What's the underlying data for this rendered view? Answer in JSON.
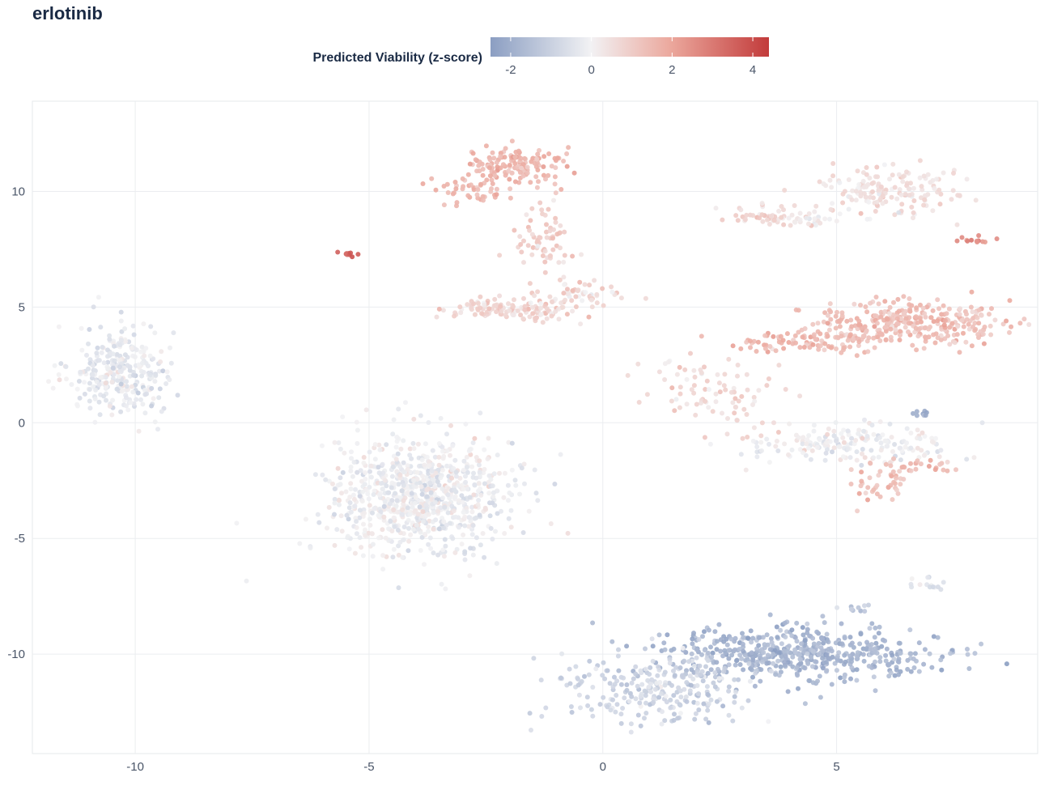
{
  "chart_data": {
    "type": "scatter",
    "title": "erlotinib",
    "xlabel": "",
    "ylabel": "",
    "xlim": [
      -12.2,
      9.3
    ],
    "ylim": [
      -14.3,
      13.9
    ],
    "x_ticks": [
      -10,
      -5,
      0,
      5
    ],
    "y_ticks": [
      10,
      5,
      0,
      -5,
      -10
    ],
    "grid": true,
    "colorbar": {
      "title": "Predicted Viability (z-score)",
      "range": [
        -2.5,
        4.4
      ],
      "ticks": [
        -2,
        0,
        2,
        4
      ],
      "colors": {
        "low": "#8b9ec2",
        "mid": "#f2f2f4",
        "high": "#c23b3b"
      },
      "placement": "top-center"
    },
    "clusters": [
      {
        "id": "c1",
        "center": [
          -10.3,
          2.2
        ],
        "spread": [
          0.55,
          1.0
        ],
        "n": 300,
        "value": -0.3
      },
      {
        "id": "c2",
        "center": [
          -5.4,
          7.3
        ],
        "spread": [
          0.1,
          0.07
        ],
        "n": 10,
        "value": 3.6
      },
      {
        "id": "c3",
        "center": [
          -3.9,
          -3.2
        ],
        "spread": [
          0.95,
          1.3
        ],
        "n": 850,
        "value": -0.1
      },
      {
        "id": "c4",
        "center": [
          -1.9,
          11.1
        ],
        "spread": [
          0.55,
          0.55
        ],
        "n": 140,
        "value": 1.6
      },
      {
        "id": "c5",
        "center": [
          -2.9,
          10.0
        ],
        "spread": [
          0.35,
          0.25
        ],
        "n": 40,
        "value": 1.5
      },
      {
        "id": "c6",
        "center": [
          -1.3,
          8.0
        ],
        "spread": [
          0.3,
          0.75
        ],
        "n": 70,
        "value": 1.0
      },
      {
        "id": "c7",
        "center": [
          -1.9,
          4.9
        ],
        "spread": [
          0.75,
          0.25
        ],
        "n": 140,
        "value": 0.8
      },
      {
        "id": "c8",
        "center": [
          -0.5,
          5.5
        ],
        "spread": [
          0.45,
          0.3
        ],
        "n": 50,
        "value": 0.6
      },
      {
        "id": "c9",
        "center": [
          3.4,
          8.9
        ],
        "spread": [
          0.4,
          0.25
        ],
        "n": 45,
        "value": 0.8
      },
      {
        "id": "c10",
        "center": [
          4.4,
          8.9
        ],
        "spread": [
          0.5,
          0.2
        ],
        "n": 30,
        "value": 0.4
      },
      {
        "id": "c11",
        "center": [
          6.2,
          10.0
        ],
        "spread": [
          0.7,
          0.55
        ],
        "n": 160,
        "value": 0.5
      },
      {
        "id": "c12",
        "center": [
          8.0,
          7.9
        ],
        "spread": [
          0.25,
          0.07
        ],
        "n": 12,
        "value": 2.5
      },
      {
        "id": "c13",
        "center": [
          6.5,
          4.3
        ],
        "spread": [
          1.1,
          0.45
        ],
        "n": 320,
        "value": 1.4
      },
      {
        "id": "c14",
        "center": [
          4.2,
          3.5
        ],
        "spread": [
          0.8,
          0.25
        ],
        "n": 80,
        "value": 1.5
      },
      {
        "id": "c15",
        "center": [
          2.5,
          1.3
        ],
        "spread": [
          0.7,
          0.9
        ],
        "n": 90,
        "value": 0.7
      },
      {
        "id": "c16",
        "center": [
          5.3,
          -0.9
        ],
        "spread": [
          1.1,
          0.4
        ],
        "n": 180,
        "value": 0.0
      },
      {
        "id": "c17",
        "center": [
          5.9,
          -2.6
        ],
        "spread": [
          0.35,
          0.45
        ],
        "n": 40,
        "value": 1.4
      },
      {
        "id": "c18",
        "center": [
          6.8,
          -1.8
        ],
        "spread": [
          0.4,
          0.15
        ],
        "n": 25,
        "value": 1.6
      },
      {
        "id": "c19",
        "center": [
          4.1,
          -10.0
        ],
        "spread": [
          1.45,
          0.55
        ],
        "n": 520,
        "value": -1.8
      },
      {
        "id": "c20",
        "center": [
          1.2,
          -11.5
        ],
        "spread": [
          1.05,
          0.75
        ],
        "n": 260,
        "value": -0.9
      },
      {
        "id": "c21",
        "center": [
          7.0,
          -7.0
        ],
        "spread": [
          0.25,
          0.2
        ],
        "n": 14,
        "value": -0.5
      },
      {
        "id": "c22",
        "center": [
          6.8,
          0.4
        ],
        "spread": [
          0.12,
          0.07
        ],
        "n": 8,
        "value": -1.8
      },
      {
        "id": "c23",
        "center": [
          5.4,
          -8.0
        ],
        "spread": [
          0.2,
          0.1
        ],
        "n": 10,
        "value": -1.2
      }
    ]
  }
}
